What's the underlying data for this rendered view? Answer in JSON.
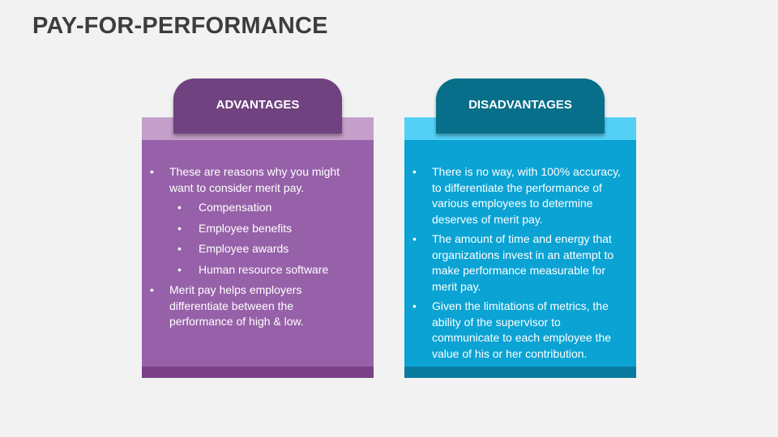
{
  "title": "PAY-FOR-PERFORMANCE",
  "advantages": {
    "heading": "ADVANTAGES",
    "point1": "These are reasons why you might want to consider merit pay.",
    "subpoints": [
      "Compensation",
      "Employee benefits",
      "Employee awards",
      "Human resource software"
    ],
    "point2": "Merit pay helps employers differentiate between the performance of high & low."
  },
  "disadvantages": {
    "heading": "DISADVANTAGES",
    "points": [
      "There is no way, with 100% accuracy, to differentiate the performance of various employees to determine deserves of merit pay.",
      "The amount of time and energy that organizations invest in an attempt to make performance measurable for merit pay.",
      "Given the limitations of metrics, the ability of the supervisor to communicate to each employee the value of his or her contribution."
    ]
  },
  "colors": {
    "advantages_accent": "#70427f",
    "disadvantages_accent": "#076f89"
  }
}
